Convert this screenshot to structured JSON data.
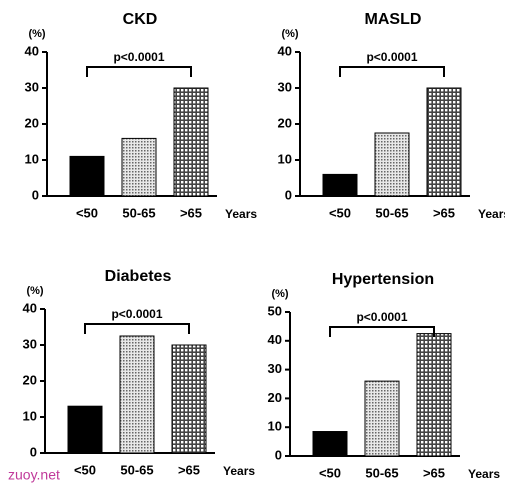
{
  "chart_data": [
    {
      "type": "bar",
      "title": "CKD",
      "y_unit": "(%)",
      "x_unit": "Years",
      "annotation": "p<0.0001",
      "categories": [
        "<50",
        "50-65",
        ">65"
      ],
      "values": [
        11,
        16,
        30
      ],
      "colors": [
        "#000000",
        "#666666",
        "#444444"
      ],
      "patterns": [
        "solid",
        "dots",
        "grid"
      ],
      "ylim": [
        0,
        40
      ],
      "yticks": [
        0,
        10,
        20,
        30,
        40
      ]
    },
    {
      "type": "bar",
      "title": "MASLD",
      "y_unit": "(%)",
      "x_unit": "Years",
      "annotation": "p<0.0001",
      "categories": [
        "<50",
        "50-65",
        ">65"
      ],
      "values": [
        6,
        17.5,
        30
      ],
      "colors": [
        "#000000",
        "#666666",
        "#444444"
      ],
      "patterns": [
        "solid",
        "dots",
        "grid"
      ],
      "ylim": [
        0,
        40
      ],
      "yticks": [
        0,
        10,
        20,
        30,
        40
      ]
    },
    {
      "type": "bar",
      "title": "Diabetes",
      "y_unit": "(%)",
      "x_unit": "Years",
      "annotation": "p<0.0001",
      "categories": [
        "<50",
        "50-65",
        ">65"
      ],
      "values": [
        13,
        32.5,
        30
      ],
      "colors": [
        "#000000",
        "#666666",
        "#444444"
      ],
      "patterns": [
        "solid",
        "dots",
        "grid"
      ],
      "ylim": [
        0,
        40
      ],
      "yticks": [
        0,
        10,
        20,
        30,
        40
      ]
    },
    {
      "type": "bar",
      "title": "Hypertension",
      "y_unit": "(%)",
      "x_unit": "Years",
      "annotation": "p<0.0001",
      "categories": [
        "<50",
        "50-65",
        ">65"
      ],
      "values": [
        8.5,
        26,
        42.5
      ],
      "colors": [
        "#000000",
        "#666666",
        "#444444"
      ],
      "patterns": [
        "solid",
        "dots",
        "grid"
      ],
      "ylim": [
        0,
        50
      ],
      "yticks": [
        0,
        10,
        20,
        30,
        40,
        50
      ]
    }
  ],
  "watermark": "zuoy.net"
}
